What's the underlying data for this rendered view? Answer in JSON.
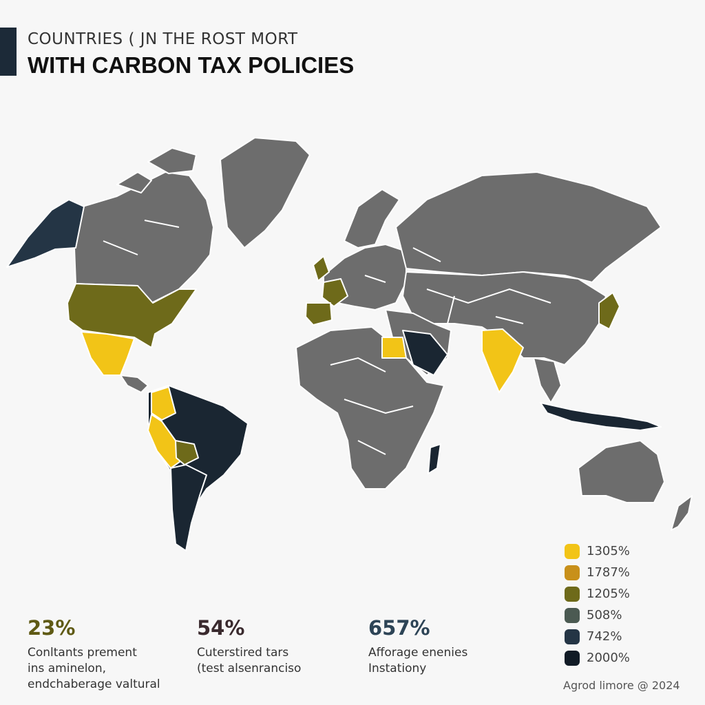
{
  "title": {
    "line1": "COUNTRIES ( JN THE ROST MORT",
    "line2": "WITH CARBON TAX POLICIES"
  },
  "colors": {
    "land": "#6d6d6d",
    "border": "#ffffff",
    "accent_bar": "#1c2a38",
    "yellow": "#f2c417",
    "amber": "#c8901a",
    "olive": "#6e6a1a",
    "slate": "#4b5a52",
    "dark_navy": "#243545",
    "navy": "#1a2632"
  },
  "legend": {
    "items": [
      {
        "label": "1305%",
        "color": "#f2c417"
      },
      {
        "label": "1787%",
        "color": "#c8901a"
      },
      {
        "label": "1205%",
        "color": "#6e6a1a"
      },
      {
        "label": "508%",
        "color": "#4b5a52"
      },
      {
        "label": "742%",
        "color": "#243545"
      },
      {
        "label": "2000%",
        "color": "#111b26"
      }
    ]
  },
  "stats": [
    {
      "value": "23%",
      "color": "#5f5a14",
      "text": "Conltants prement\nins aminelon,\nendchaberage valtural"
    },
    {
      "value": "54%",
      "color": "#3a2a2e",
      "text": "Cuterstired tars\n(test alsenrancisо"
    },
    {
      "value": "657%",
      "color": "#2d4456",
      "text": "Afforage enenies\nInstationy"
    }
  ],
  "credit": "Agrod limore @ 2024",
  "highlighted_regions": [
    {
      "name": "Alaska",
      "color": "#243545"
    },
    {
      "name": "United States",
      "color": "#6e6a1a"
    },
    {
      "name": "Mexico",
      "color": "#f2c417"
    },
    {
      "name": "Colombia",
      "color": "#f2c417"
    },
    {
      "name": "Peru",
      "color": "#f2c417"
    },
    {
      "name": "Bolivia",
      "color": "#6e6a1a"
    },
    {
      "name": "Brazil",
      "color": "#1a2632"
    },
    {
      "name": "Southern South America",
      "color": "#1a2632"
    },
    {
      "name": "United Kingdom",
      "color": "#6e6a1a"
    },
    {
      "name": "Iberia",
      "color": "#6e6a1a"
    },
    {
      "name": "France",
      "color": "#6e6a1a"
    },
    {
      "name": "Egypt",
      "color": "#f2c417"
    },
    {
      "name": "Saudi Arabia",
      "color": "#1a2632"
    },
    {
      "name": "India",
      "color": "#f2c417"
    },
    {
      "name": "Japan",
      "color": "#6e6a1a"
    },
    {
      "name": "Indonesia",
      "color": "#1a2632"
    },
    {
      "name": "Madagascar",
      "color": "#1a2632"
    }
  ]
}
